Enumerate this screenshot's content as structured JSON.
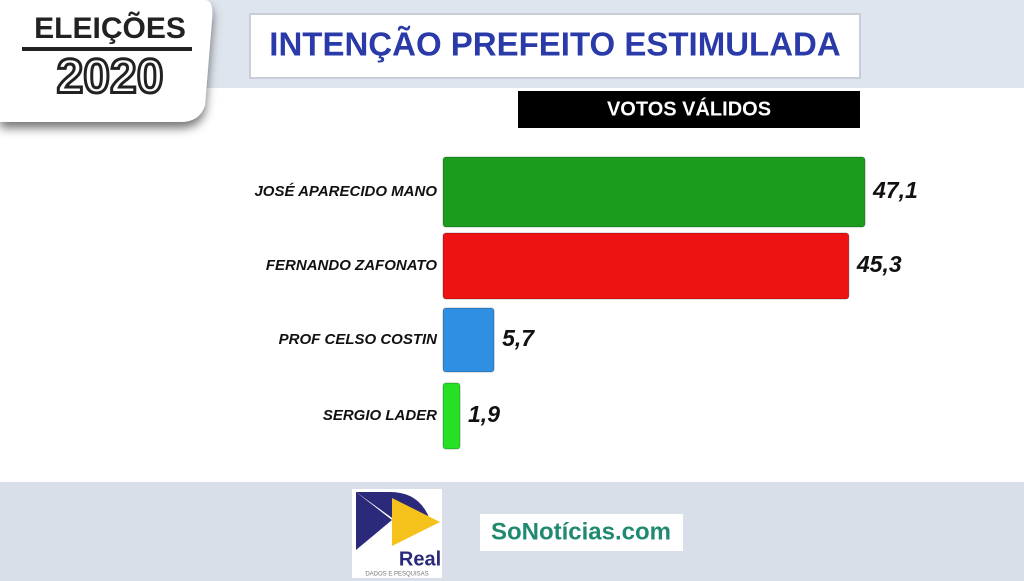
{
  "branding": {
    "badge_top": "ELEIÇÕES",
    "badge_bottom": "2020",
    "pollster": "Real",
    "pollster_tagline": "DADOS E PESQUISAS",
    "outlet": "SoNotícias.com"
  },
  "chart_data": {
    "type": "hbar",
    "title": "INTENÇÃO PREFEITO ESTIMULADA",
    "subtitle": "VOTOS VÁLIDOS",
    "categories": [
      "JOSÉ APARECIDO MANO",
      "FERNANDO ZAFONATO",
      "PROF CELSO COSTIN",
      "SERGIO LADER"
    ],
    "values": [
      47.1,
      45.3,
      5.7,
      1.9
    ],
    "value_labels": [
      "47,1",
      "45,3",
      "5,7",
      "1,9"
    ],
    "colors": [
      "#1c9c1c",
      "#ee1313",
      "#2f8fe0",
      "#25e025"
    ]
  }
}
